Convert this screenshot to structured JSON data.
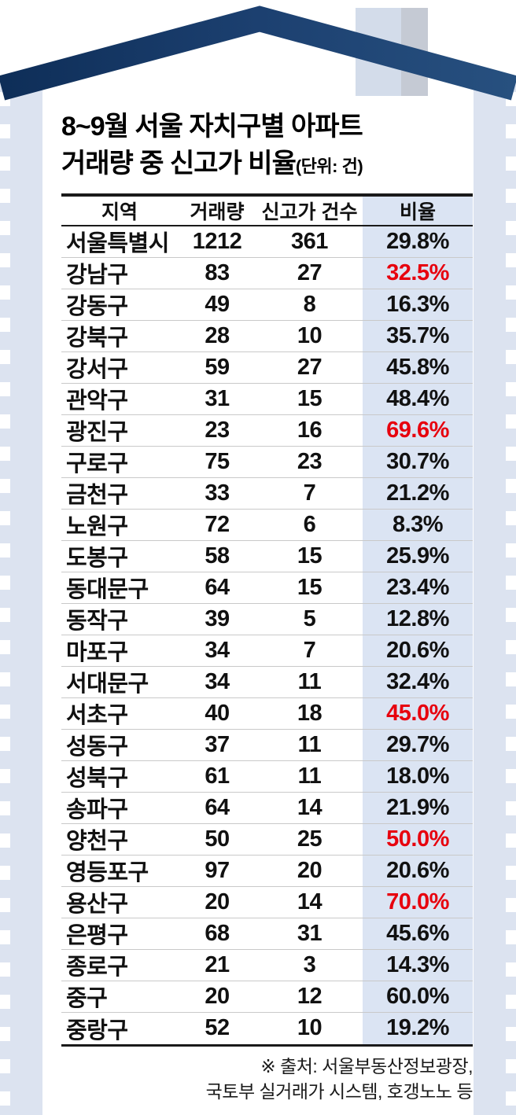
{
  "colors": {
    "red": "#e7000e",
    "roof_dark": "#0e2e58",
    "roof_light": "#27507f",
    "panel": "#dce3f0",
    "ratio_column_bg": "#dbe4f3",
    "chimney_left": "#d3dcea",
    "chimney_right": "#c5cad4"
  },
  "title": {
    "line1": "8~9월 서울 자치구별 아파트",
    "line2": "거래량 중 신고가 비율",
    "unit": "(단위: 건)"
  },
  "footer": {
    "line1": "※ 출처: 서울부동산정보광장,",
    "line2": "국토부 실거래가 시스템, 호갱노노 등"
  },
  "chart_data": {
    "type": "table",
    "title": "8~9월 서울 자치구별 아파트 거래량 중 신고가 비율",
    "unit": "(단위: 건)",
    "headers": [
      "지역",
      "거래량",
      "신고가 건수",
      "비율"
    ],
    "highlight_note": "red ratio values highlighted",
    "rows": [
      {
        "region": "서울특별시",
        "volume": 1212,
        "highs": 361,
        "ratio": "29.8%",
        "red": false
      },
      {
        "region": "강남구",
        "volume": 83,
        "highs": 27,
        "ratio": "32.5%",
        "red": true
      },
      {
        "region": "강동구",
        "volume": 49,
        "highs": 8,
        "ratio": "16.3%",
        "red": false
      },
      {
        "region": "강북구",
        "volume": 28,
        "highs": 10,
        "ratio": "35.7%",
        "red": false
      },
      {
        "region": "강서구",
        "volume": 59,
        "highs": 27,
        "ratio": "45.8%",
        "red": false
      },
      {
        "region": "관악구",
        "volume": 31,
        "highs": 15,
        "ratio": "48.4%",
        "red": false
      },
      {
        "region": "광진구",
        "volume": 23,
        "highs": 16,
        "ratio": "69.6%",
        "red": true
      },
      {
        "region": "구로구",
        "volume": 75,
        "highs": 23,
        "ratio": "30.7%",
        "red": false
      },
      {
        "region": "금천구",
        "volume": 33,
        "highs": 7,
        "ratio": "21.2%",
        "red": false
      },
      {
        "region": "노원구",
        "volume": 72,
        "highs": 6,
        "ratio": "8.3%",
        "red": false
      },
      {
        "region": "도봉구",
        "volume": 58,
        "highs": 15,
        "ratio": "25.9%",
        "red": false
      },
      {
        "region": "동대문구",
        "volume": 64,
        "highs": 15,
        "ratio": "23.4%",
        "red": false
      },
      {
        "region": "동작구",
        "volume": 39,
        "highs": 5,
        "ratio": "12.8%",
        "red": false
      },
      {
        "region": "마포구",
        "volume": 34,
        "highs": 7,
        "ratio": "20.6%",
        "red": false
      },
      {
        "region": "서대문구",
        "volume": 34,
        "highs": 11,
        "ratio": "32.4%",
        "red": false
      },
      {
        "region": "서초구",
        "volume": 40,
        "highs": 18,
        "ratio": "45.0%",
        "red": true
      },
      {
        "region": "성동구",
        "volume": 37,
        "highs": 11,
        "ratio": "29.7%",
        "red": false
      },
      {
        "region": "성북구",
        "volume": 61,
        "highs": 11,
        "ratio": "18.0%",
        "red": false
      },
      {
        "region": "송파구",
        "volume": 64,
        "highs": 14,
        "ratio": "21.9%",
        "red": false
      },
      {
        "region": "양천구",
        "volume": 50,
        "highs": 25,
        "ratio": "50.0%",
        "red": true
      },
      {
        "region": "영등포구",
        "volume": 97,
        "highs": 20,
        "ratio": "20.6%",
        "red": false
      },
      {
        "region": "용산구",
        "volume": 20,
        "highs": 14,
        "ratio": "70.0%",
        "red": true
      },
      {
        "region": "은평구",
        "volume": 68,
        "highs": 31,
        "ratio": "45.6%",
        "red": false
      },
      {
        "region": "종로구",
        "volume": 21,
        "highs": 3,
        "ratio": "14.3%",
        "red": false
      },
      {
        "region": "중구",
        "volume": 20,
        "highs": 12,
        "ratio": "60.0%",
        "red": false
      },
      {
        "region": "중랑구",
        "volume": 52,
        "highs": 10,
        "ratio": "19.2%",
        "red": false
      }
    ]
  }
}
